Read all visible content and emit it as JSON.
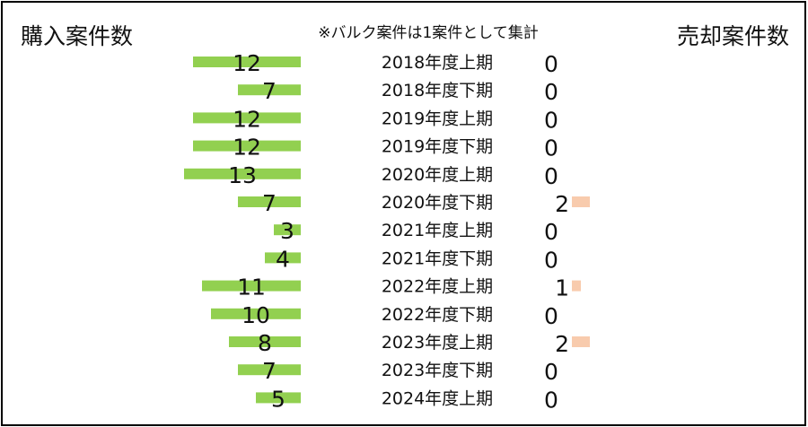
{
  "chart_data": {
    "type": "bar",
    "title_left": "購入案件数",
    "title_right": "売却案件数",
    "note": "※バルク案件は1案件として集計",
    "categories": [
      "2018年度上期",
      "2018年度下期",
      "2019年度上期",
      "2019年度下期",
      "2020年度上期",
      "2020年度下期",
      "2021年度上期",
      "2021年度下期",
      "2022年度上期",
      "2022年度下期",
      "2023年度上期",
      "2023年度下期",
      "2024年度上期"
    ],
    "series": [
      {
        "name": "購入案件数",
        "values": [
          12,
          7,
          12,
          12,
          13,
          7,
          3,
          4,
          11,
          10,
          8,
          7,
          5
        ],
        "color": "#92d050"
      },
      {
        "name": "売却案件数",
        "values": [
          0,
          0,
          0,
          0,
          0,
          2,
          0,
          0,
          1,
          0,
          2,
          0,
          0
        ],
        "color": "#f8cbad"
      }
    ]
  }
}
